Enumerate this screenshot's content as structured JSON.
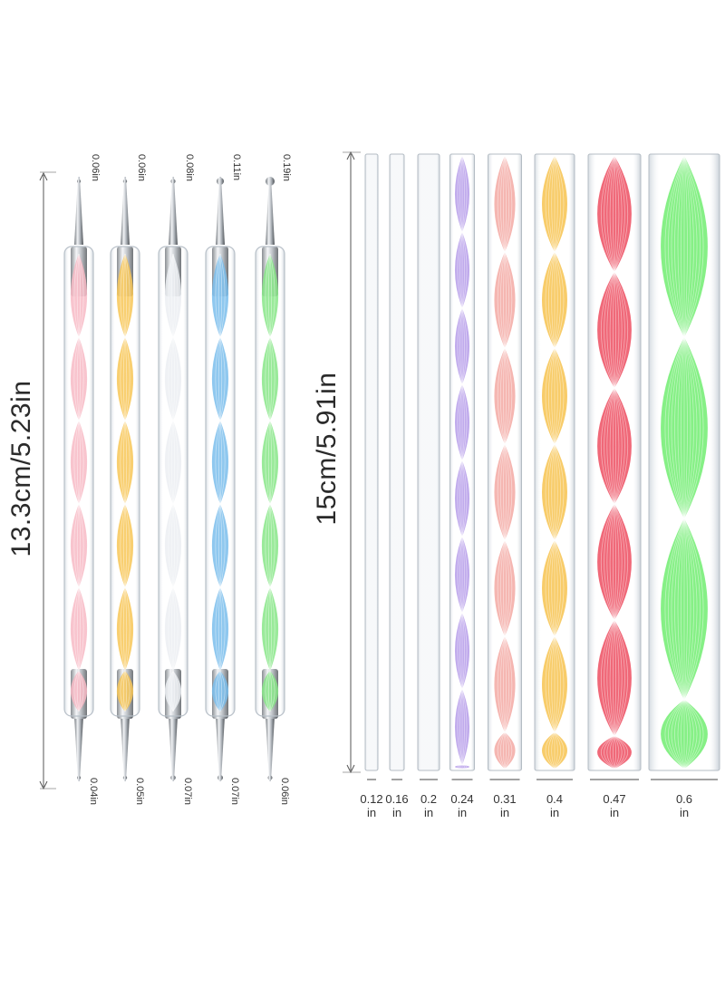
{
  "dotting_tools": {
    "length_label": "13.3cm/5.23in",
    "tools": [
      {
        "color": "#f6a9b7",
        "top_label": "0.06in",
        "bottom_label": "0.04in"
      },
      {
        "color": "#f6b92e",
        "top_label": "0.06in",
        "bottom_label": "0.05in"
      },
      {
        "color": "#e8ebf0",
        "top_label": "0.08in",
        "bottom_label": "0.07in"
      },
      {
        "color": "#5aaee8",
        "top_label": "0.11in",
        "bottom_label": "0.07in"
      },
      {
        "color": "#6be06b",
        "top_label": "0.19in",
        "bottom_label": "0.06in"
      }
    ]
  },
  "rods": {
    "length_label": "15cm/5.91in",
    "items": [
      {
        "color": "#e6eaef",
        "value": "0.12",
        "unit": "in"
      },
      {
        "color": "#e6eaef",
        "value": "0.16",
        "unit": "in"
      },
      {
        "color": "#e6eaef",
        "value": "0.2",
        "unit": "in"
      },
      {
        "color": "#a98be6",
        "value": "0.24",
        "unit": "in"
      },
      {
        "color": "#f29a94",
        "value": "0.31",
        "unit": "in"
      },
      {
        "color": "#f5b830",
        "value": "0.4",
        "unit": "in"
      },
      {
        "color": "#ea2f45",
        "value": "0.47",
        "unit": "in"
      },
      {
        "color": "#58ea58",
        "value": "0.6",
        "unit": "in"
      }
    ]
  }
}
